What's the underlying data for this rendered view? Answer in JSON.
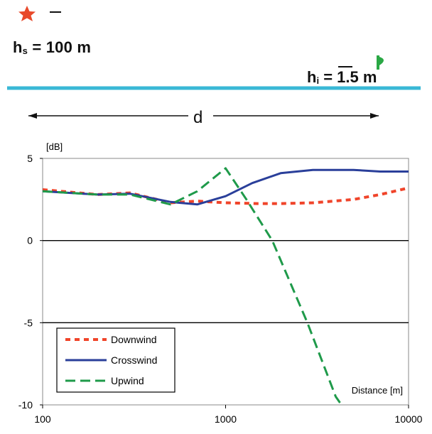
{
  "scene": {
    "source_label_prefix": "h",
    "source_subscript": "s",
    "source_value": "= 100 m",
    "receiver_label_prefix": "h",
    "receiver_subscript": "i",
    "receiver_value": "= 1.5 m",
    "distance_label": "d",
    "colors": {
      "source": "#e8492a",
      "receiver": "#2aa845",
      "ground": "#39b8d6"
    }
  },
  "chart_data": {
    "type": "line",
    "title": "",
    "ylabel": "[dB]",
    "xlabel": "Distance [m]",
    "xscale": "log",
    "xlim": [
      100,
      10000
    ],
    "ylim": [
      -10,
      5
    ],
    "x_ticks": [
      100,
      1000,
      10000
    ],
    "y_ticks": [
      5,
      0,
      -5,
      -10
    ],
    "x_tick_labels": [
      "100",
      "1000",
      "10000"
    ],
    "y_tick_labels": [
      "5",
      "0",
      "-5",
      "-10"
    ],
    "grid": "horizontal",
    "legend_position": "bottom-left",
    "series": [
      {
        "name": "Downwind",
        "color": "#f0442a",
        "style": "dotted",
        "x": [
          100,
          200,
          300,
          500,
          700,
          1000,
          1500,
          2000,
          3000,
          5000,
          7000,
          10000
        ],
        "y": [
          3.1,
          2.8,
          2.9,
          2.3,
          2.4,
          2.3,
          2.25,
          2.25,
          2.3,
          2.5,
          2.8,
          3.2
        ]
      },
      {
        "name": "Crosswind",
        "color": "#2a3f9a",
        "style": "solid",
        "x": [
          100,
          200,
          300,
          500,
          700,
          1000,
          1400,
          2000,
          3000,
          5000,
          7000,
          10000
        ],
        "y": [
          3.0,
          2.8,
          2.85,
          2.35,
          2.2,
          2.7,
          3.5,
          4.1,
          4.3,
          4.3,
          4.2,
          4.2
        ]
      },
      {
        "name": "Upwind",
        "color": "#1f9a4a",
        "style": "dashed",
        "x": [
          100,
          200,
          300,
          500,
          700,
          1000,
          1300,
          1800,
          2800,
          4000,
          4300
        ],
        "y": [
          3.0,
          2.8,
          2.8,
          2.2,
          3.0,
          4.4,
          2.5,
          0.0,
          -5.0,
          -9.5,
          -10.0
        ]
      }
    ]
  }
}
